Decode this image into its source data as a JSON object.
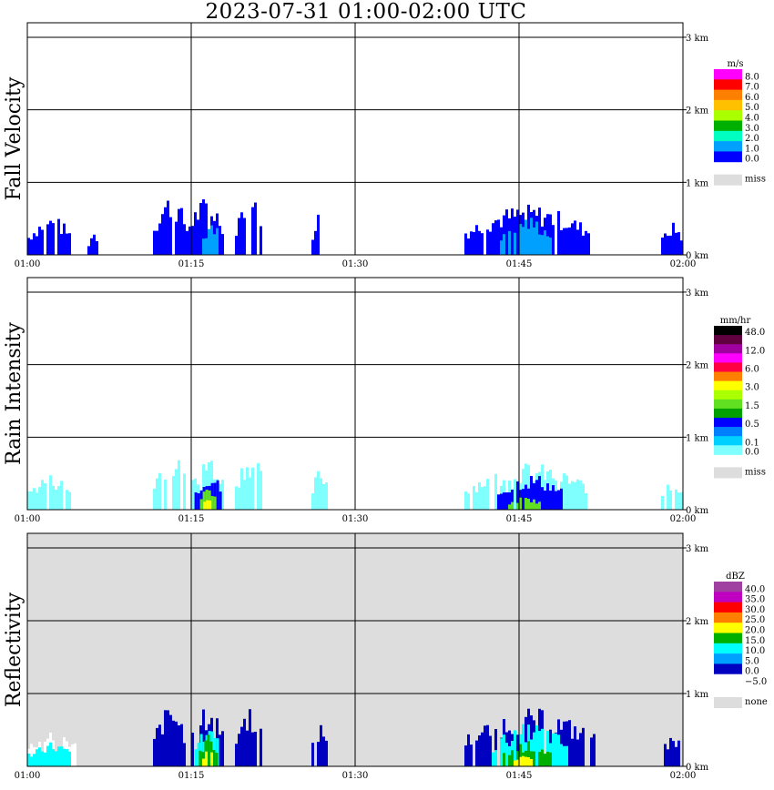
{
  "title": "2023-07-31   01:00-02:00 UTC",
  "chart_data": [
    {
      "type": "heatmap",
      "ylabel": "Fall Velocity",
      "background": "#ffffff",
      "x_ticks": [
        "01:00",
        "01:15",
        "01:30",
        "01:45",
        "02:00"
      ],
      "y_ticks": [
        "0 km",
        "1 km",
        "2 km",
        "3 km"
      ],
      "xlim": [
        "01:00",
        "02:00"
      ],
      "ylim_km": [
        0,
        3.2
      ],
      "grid": true,
      "legend": {
        "unit": "m/s",
        "entries": [
          {
            "label": "8.0",
            "color": "#ff00ff"
          },
          {
            "label": "7.0",
            "color": "#ff0000"
          },
          {
            "label": "6.0",
            "color": "#ff8000"
          },
          {
            "label": "5.0",
            "color": "#ffc000"
          },
          {
            "label": "4.0",
            "color": "#aaff00"
          },
          {
            "label": "3.0",
            "color": "#00b000"
          },
          {
            "label": "2.0",
            "color": "#00ffc0"
          },
          {
            "label": "1.0",
            "color": "#00a0ff"
          },
          {
            "label": "0.0",
            "color": "#0000ff"
          }
        ],
        "missing_label": "miss",
        "missing_color": "#dddddd"
      },
      "echoes": [
        {
          "t_start": 0.0,
          "t_end": 4.0,
          "h_top": 0.55,
          "color": "#0000ff"
        },
        {
          "t_start": 5.5,
          "t_end": 6.5,
          "h_top": 0.35,
          "color": "#0000ff"
        },
        {
          "t_start": 11.5,
          "t_end": 14.5,
          "h_top": 0.85,
          "color": "#0000ff"
        },
        {
          "t_start": 14.5,
          "t_end": 18.0,
          "h_top": 0.8,
          "color": "#0000ff"
        },
        {
          "t_start": 16.0,
          "t_end": 17.5,
          "h_top": 0.5,
          "color": "#00a0ff"
        },
        {
          "t_start": 19.0,
          "t_end": 21.5,
          "h_top": 0.85,
          "color": "#0000ff"
        },
        {
          "t_start": 26.0,
          "t_end": 27.5,
          "h_top": 0.65,
          "color": "#0000ff"
        },
        {
          "t_start": 40.0,
          "t_end": 51.5,
          "h_top": 0.7,
          "color": "#0000ff"
        },
        {
          "t_start": 43.0,
          "t_end": 48.0,
          "h_top": 0.55,
          "color": "#00a0ff"
        },
        {
          "t_start": 58.0,
          "t_end": 60.0,
          "h_top": 0.45,
          "color": "#0000ff"
        }
      ]
    },
    {
      "type": "heatmap",
      "ylabel": "Rain Intensity",
      "background": "#ffffff",
      "x_ticks": [
        "01:00",
        "01:15",
        "01:30",
        "01:45",
        "02:00"
      ],
      "y_ticks": [
        "0 km",
        "1 km",
        "2 km",
        "3 km"
      ],
      "xlim": [
        "01:00",
        "02:00"
      ],
      "ylim_km": [
        0,
        3.2
      ],
      "grid": true,
      "legend": {
        "unit": "mm/hr",
        "entries": [
          {
            "label": "48.0",
            "color": "#000000"
          },
          {
            "label": "",
            "color": "#600040"
          },
          {
            "label": "12.0",
            "color": "#a000a0"
          },
          {
            "label": "",
            "color": "#ff00ff"
          },
          {
            "label": "6.0",
            "color": "#ff0040"
          },
          {
            "label": "",
            "color": "#ff8000"
          },
          {
            "label": "3.0",
            "color": "#ffff00"
          },
          {
            "label": "",
            "color": "#aaff00"
          },
          {
            "label": "1.5",
            "color": "#60e020"
          },
          {
            "label": "",
            "color": "#00a000"
          },
          {
            "label": "0.5",
            "color": "#0000ff"
          },
          {
            "label": "",
            "color": "#0080ff"
          },
          {
            "label": "0.1",
            "color": "#00d0ff"
          },
          {
            "label": "0.0",
            "color": "#80ffff"
          }
        ],
        "missing_label": "miss",
        "missing_color": "#dddddd"
      },
      "echoes": [
        {
          "t_start": 0.0,
          "t_end": 4.0,
          "h_top": 0.5,
          "color": "#80ffff"
        },
        {
          "t_start": 11.5,
          "t_end": 14.5,
          "h_top": 0.8,
          "color": "#80ffff"
        },
        {
          "t_start": 15.0,
          "t_end": 18.0,
          "h_top": 0.8,
          "color": "#80ffff"
        },
        {
          "t_start": 15.3,
          "t_end": 17.7,
          "h_top": 0.55,
          "color": "#0000ff"
        },
        {
          "t_start": 15.8,
          "t_end": 17.2,
          "h_top": 0.35,
          "color": "#60e020"
        },
        {
          "t_start": 16.1,
          "t_end": 16.9,
          "h_top": 0.22,
          "color": "#ffff00"
        },
        {
          "t_start": 19.0,
          "t_end": 21.5,
          "h_top": 0.8,
          "color": "#80ffff"
        },
        {
          "t_start": 26.0,
          "t_end": 27.5,
          "h_top": 0.6,
          "color": "#80ffff"
        },
        {
          "t_start": 40.0,
          "t_end": 51.5,
          "h_top": 0.65,
          "color": "#80ffff"
        },
        {
          "t_start": 43.0,
          "t_end": 49.0,
          "h_top": 0.5,
          "color": "#0000ff"
        },
        {
          "t_start": 44.0,
          "t_end": 47.0,
          "h_top": 0.18,
          "color": "#60e020"
        },
        {
          "t_start": 58.0,
          "t_end": 60.0,
          "h_top": 0.45,
          "color": "#80ffff"
        }
      ]
    },
    {
      "type": "heatmap",
      "ylabel": "Reflectivity",
      "background": "#dddddd",
      "x_ticks": [
        "01:00",
        "01:15",
        "01:30",
        "01:45",
        "02:00"
      ],
      "y_ticks": [
        "0 km",
        "1 km",
        "2 km",
        "3 km"
      ],
      "xlim": [
        "01:00",
        "02:00"
      ],
      "ylim_km": [
        0,
        3.2
      ],
      "grid": true,
      "legend": {
        "unit": "dBZ",
        "entries": [
          {
            "label": "40.0",
            "color": "#a040a0"
          },
          {
            "label": "35.0",
            "color": "#c000c0"
          },
          {
            "label": "30.0",
            "color": "#ff0000"
          },
          {
            "label": "25.0",
            "color": "#ff8000"
          },
          {
            "label": "20.0",
            "color": "#ffff00"
          },
          {
            "label": "15.0",
            "color": "#00b000"
          },
          {
            "label": "10.0",
            "color": "#00ffff"
          },
          {
            "label": "5.0",
            "color": "#00a0ff"
          },
          {
            "label": "0.0",
            "color": "#0000c0"
          },
          {
            "label": "−5.0",
            "color": "#ffffff"
          }
        ],
        "missing_label": "none",
        "missing_color": "#dddddd"
      },
      "echoes": [
        {
          "t_start": 0.0,
          "t_end": 4.5,
          "h_top": 0.55,
          "color": "#ffffff"
        },
        {
          "t_start": 0.0,
          "t_end": 4.0,
          "h_top": 0.35,
          "color": "#00ffff"
        },
        {
          "t_start": 11.5,
          "t_end": 14.5,
          "h_top": 0.85,
          "color": "#0000c0"
        },
        {
          "t_start": 15.0,
          "t_end": 18.0,
          "h_top": 0.85,
          "color": "#0000c0"
        },
        {
          "t_start": 15.3,
          "t_end": 17.7,
          "h_top": 0.65,
          "color": "#00ffff"
        },
        {
          "t_start": 15.7,
          "t_end": 17.3,
          "h_top": 0.45,
          "color": "#00b000"
        },
        {
          "t_start": 16.0,
          "t_end": 17.0,
          "h_top": 0.3,
          "color": "#ffff00"
        },
        {
          "t_start": 19.0,
          "t_end": 21.5,
          "h_top": 0.85,
          "color": "#0000c0"
        },
        {
          "t_start": 26.0,
          "t_end": 27.5,
          "h_top": 0.6,
          "color": "#0000c0"
        },
        {
          "t_start": 40.0,
          "t_end": 52.0,
          "h_top": 0.8,
          "color": "#0000c0"
        },
        {
          "t_start": 42.5,
          "t_end": 49.5,
          "h_top": 0.6,
          "color": "#00ffff"
        },
        {
          "t_start": 43.5,
          "t_end": 48.0,
          "h_top": 0.35,
          "color": "#00b000"
        },
        {
          "t_start": 44.5,
          "t_end": 46.5,
          "h_top": 0.15,
          "color": "#ffff00"
        },
        {
          "t_start": 58.0,
          "t_end": 60.0,
          "h_top": 0.45,
          "color": "#0000c0"
        }
      ]
    }
  ]
}
